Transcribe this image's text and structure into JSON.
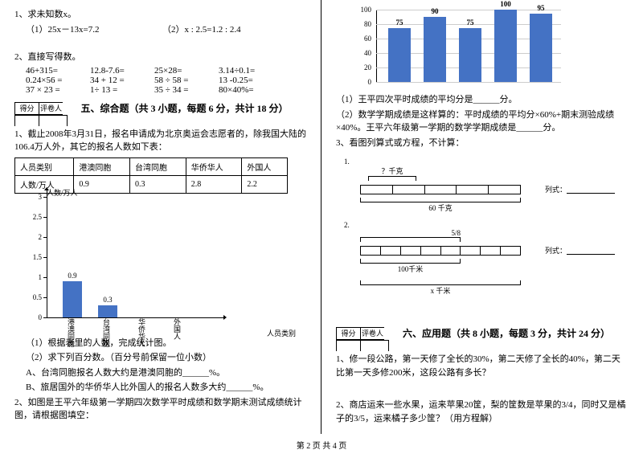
{
  "left": {
    "q1": {
      "title": "1、求未知数x。",
      "a": "（1）25x－13x=7.2",
      "b": "（2）x : 2.5=1.2 : 2.4"
    },
    "q2": {
      "title": "2、直接写得数。",
      "rows": [
        [
          "46+315=",
          "12.8-7.6=",
          "25×28=",
          "3.14÷0.1="
        ],
        [
          "0.24×56 =",
          "34 + 12 =",
          "58 ÷ 58 =",
          "13 -0.25="
        ],
        [
          "37 × 23 =",
          "1÷ 13 =",
          "35 ÷ 34 =",
          "80×40%="
        ]
      ]
    },
    "sec5": {
      "score": "得分",
      "grader": "评卷人",
      "title": "五、综合题（共 3 小题，每题 6 分，共计 18 分）"
    },
    "p1": "1、截止2008年3月31日，报名申请成为北京奥运会志愿者的，除我国大陆的106.4万人外，其它的报名人数如下表：",
    "table": {
      "h": [
        "人员类别",
        "港澳同胞",
        "台湾同胞",
        "华侨华人",
        "外国人"
      ],
      "d": [
        "人数/万人",
        "0.9",
        "0.3",
        "2.8",
        "2.2"
      ]
    },
    "chart1": {
      "ylabel": "人数/万人",
      "xlabel": "人员类别",
      "yticks": [
        "3",
        "2.5",
        "2",
        "1.5",
        "1",
        "0.5",
        "0"
      ],
      "bars": [
        {
          "label": "港澳同胞",
          "v": 0.9,
          "t": "0.9"
        },
        {
          "label": "台湾同胞",
          "v": 0.3,
          "t": "0.3"
        },
        {
          "label": "华侨华人",
          "v": 0,
          "t": ""
        },
        {
          "label": "外国人",
          "v": 0,
          "t": ""
        }
      ],
      "ymax": 3,
      "color": "#4472c4"
    },
    "sub": [
      "（1）根据表里的人数，完成统计图。",
      "（2）求下列百分数。（百分号前保留一位小数）",
      "A、台湾同胞报名人数大约是港澳同胞的______%。",
      "B、旅居国外的华侨华人比外国人的报名人数多大约______%。"
    ],
    "p2": "2、如图是王平六年级第一学期四次数学平时成绩和数学期末测试成绩统计图，请根据图填空："
  },
  "right": {
    "chart2": {
      "yticks": [
        "100",
        "80",
        "60",
        "40",
        "20",
        "0"
      ],
      "ymax": 100,
      "color": "#4472c4",
      "bars": [
        {
          "v": 75,
          "t": "75"
        },
        {
          "v": 90,
          "t": "90"
        },
        {
          "v": 75,
          "t": "75"
        },
        {
          "v": 100,
          "t": "100"
        },
        {
          "v": 95,
          "t": "95"
        }
      ]
    },
    "lines": [
      "（1）王平四次平时成绩的平均分是______分。",
      "（2）数学学期成绩是这样算的：平时成绩的平均分×60%+期末测验成绩×40%。王平六年级第一学期的数学学期成绩是______分。",
      "3、看图列算式或方程，不计算："
    ],
    "d1": {
      "num": "1.",
      "top": "？千克",
      "bottom": "60 千克",
      "side": "列式："
    },
    "d2": {
      "num": "2.",
      "top": "5/8",
      "mid": "100千米",
      "bottom": "x 千米",
      "side": "列式："
    },
    "sec6": {
      "score": "得分",
      "grader": "评卷人",
      "title": "六、应用题（共 8 小题，每题 3 分，共计 24 分）"
    },
    "app": [
      "1、修一段公路，第一天修了全长的30%，第二天修了全长的40%，第二天比第一天多修200米，这段公路有多长？",
      "2、商店运来一些水果，运来苹果20筐，梨的筐数是苹果的3/4，同时又是橘子的3/5，运来橘子多少筐？（用方程解）"
    ]
  },
  "footer": "第 2 页  共 4 页"
}
